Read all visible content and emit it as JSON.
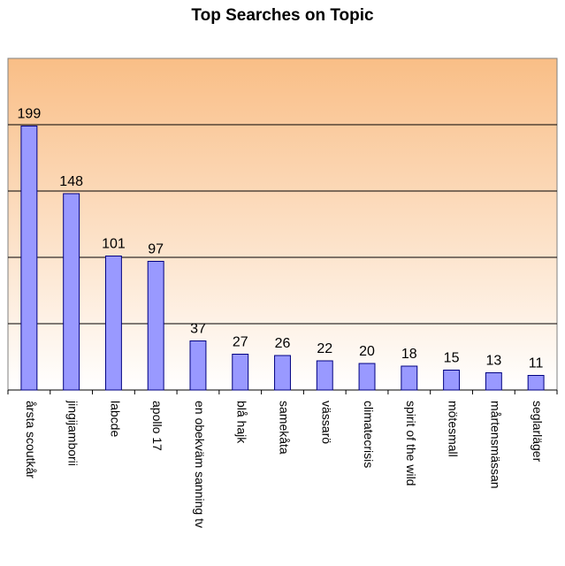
{
  "chart_data": {
    "type": "bar",
    "title": "Top Searches on Topic",
    "xlabel": "",
    "ylabel": "",
    "categories": [
      "årsta scoutkår",
      "jingijamborii",
      "labcde",
      "apollo 17",
      "en obekväm sanning tv",
      "blå hajk",
      "samekåta",
      "vässarö",
      "climatecrisis",
      "spirit of the wild",
      "mötesmall",
      "mårtensmässan",
      "seglarläger"
    ],
    "values": [
      199,
      148,
      101,
      97,
      37,
      27,
      26,
      22,
      20,
      18,
      15,
      13,
      11
    ],
    "ylim": [
      0,
      250
    ],
    "grid": true,
    "legend": "none",
    "colors": {
      "bar_fill": "#9999ff",
      "bar_stroke": "#000080",
      "plot_bg_top": "#f9be86",
      "plot_bg_bottom": "#ffffff",
      "gridline": "#000000"
    }
  }
}
